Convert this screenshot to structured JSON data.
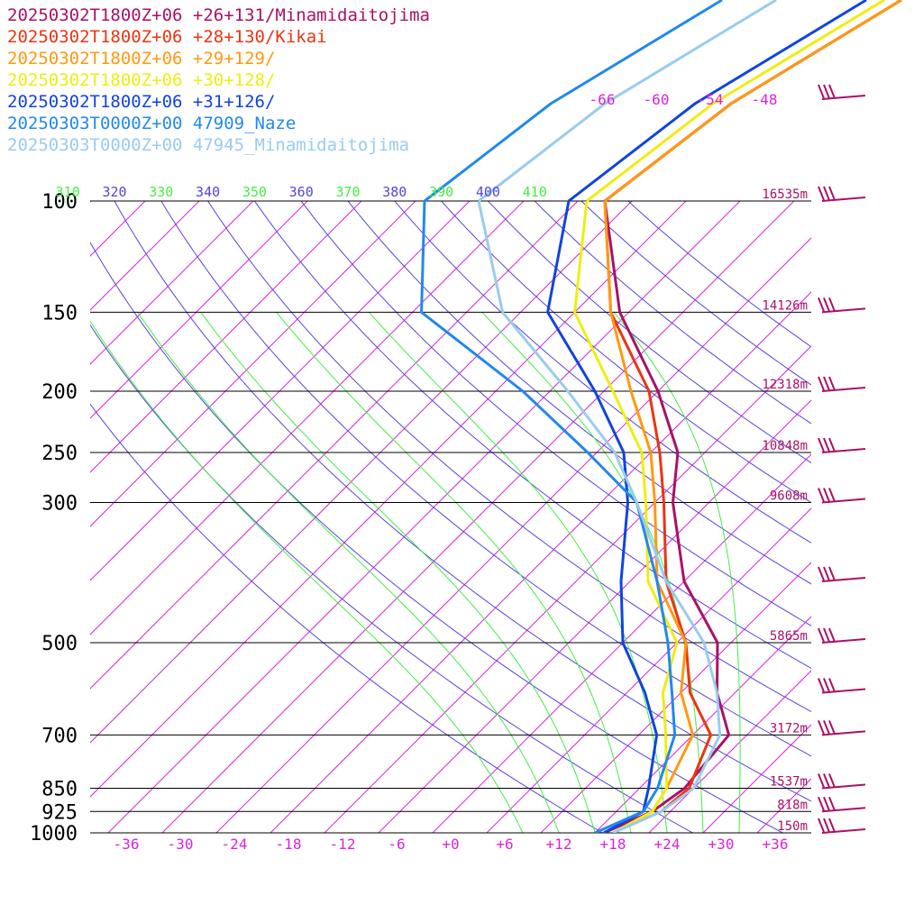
{
  "chart_data": {
    "type": "line",
    "chart_kind": "skew-T log-p sounding",
    "x_axis": {
      "unit": "°C",
      "range": [
        -40,
        40
      ],
      "tick_labels": [
        "-36",
        "-30",
        "-24",
        "-18",
        "-12",
        "-6",
        "+0",
        "+6",
        "+12",
        "+18",
        "+24",
        "+30",
        "+36"
      ]
    },
    "y_axis": {
      "unit": "hPa",
      "scale": "log",
      "range": [
        1000,
        100
      ],
      "tick_labels": [
        {
          "p": 100,
          "label": "100"
        },
        {
          "p": 150,
          "label": "150"
        },
        {
          "p": 200,
          "label": "200"
        },
        {
          "p": 250,
          "label": "250"
        },
        {
          "p": 300,
          "label": "300"
        },
        {
          "p": 500,
          "label": "500"
        },
        {
          "p": 700,
          "label": "700"
        },
        {
          "p": 850,
          "label": "850"
        },
        {
          "p": 925,
          "label": "925"
        },
        {
          "p": 1000,
          "label": "1000"
        }
      ]
    },
    "height_labels": [
      {
        "p": 100,
        "label": "16535m"
      },
      {
        "p": 150,
        "label": "14126m"
      },
      {
        "p": 200,
        "label": "12318m"
      },
      {
        "p": 250,
        "label": "10848m"
      },
      {
        "p": 300,
        "label": "9608m"
      },
      {
        "p": 500,
        "label": "5865m"
      },
      {
        "p": 700,
        "label": "3172m"
      },
      {
        "p": 850,
        "label": "1537m"
      },
      {
        "p": 925,
        "label": "818m"
      },
      {
        "p": 1000,
        "label": "150m"
      }
    ],
    "isotherm_top_labels": [
      "-66",
      "-60",
      "-54",
      "-48"
    ],
    "theta_labels": [
      {
        "value": "310",
        "color": "#44ee44"
      },
      {
        "value": "320",
        "color": "#5544dd"
      },
      {
        "value": "330",
        "color": "#44ee44"
      },
      {
        "value": "340",
        "color": "#5544dd"
      },
      {
        "value": "350",
        "color": "#44ee44"
      },
      {
        "value": "360",
        "color": "#5544dd"
      },
      {
        "value": "370",
        "color": "#44ee44"
      },
      {
        "value": "380",
        "color": "#5544dd"
      },
      {
        "value": "390",
        "color": "#44ee44"
      },
      {
        "value": "400",
        "color": "#5544dd"
      },
      {
        "value": "410",
        "color": "#44ee44"
      }
    ],
    "dry_adiabats_theta_K": [
      290,
      300,
      310,
      320,
      330,
      340,
      350,
      360,
      370,
      380,
      390,
      400,
      410,
      420,
      430
    ],
    "moist_adiabats_theta_w_C": [
      8,
      12,
      16,
      20,
      24,
      28,
      32
    ],
    "colors": {
      "isotherm": "#dd22dd",
      "dry_adiabat": "#5544dd",
      "moist_adiabat": "#44ee44",
      "isobar": "#000000",
      "wind_barb": "#aa1166"
    },
    "series": [
      {
        "name": "20250302T1800Z+06 +26+131/Minamidaitojima",
        "color": "#aa1166",
        "points": [
          [
            1000,
            17
          ],
          [
            925,
            20
          ],
          [
            850,
            21
          ],
          [
            700,
            20
          ],
          [
            600,
            14
          ],
          [
            500,
            8.5
          ],
          [
            400,
            -2
          ],
          [
            300,
            -12
          ],
          [
            250,
            -17
          ],
          [
            200,
            -26
          ],
          [
            150,
            -39
          ],
          [
            100,
            -53
          ]
        ]
      },
      {
        "name": "20250302T1800Z+06 +28+130/Kikai",
        "color": "#ee3311",
        "points": [
          [
            1000,
            18
          ],
          [
            925,
            21
          ],
          [
            850,
            21.5
          ],
          [
            700,
            18
          ],
          [
            600,
            11
          ],
          [
            500,
            5
          ],
          [
            400,
            -4
          ],
          [
            300,
            -13
          ],
          [
            250,
            -19
          ],
          [
            200,
            -27
          ],
          [
            150,
            -40
          ],
          [
            100,
            -53
          ]
        ]
      },
      {
        "name": "20250302T1800Z+06 +29+129/",
        "color": "#ff9911",
        "points": [
          [
            1000,
            18
          ],
          [
            925,
            20
          ],
          [
            850,
            19
          ],
          [
            700,
            16
          ],
          [
            600,
            10
          ],
          [
            500,
            5
          ],
          [
            400,
            -5
          ],
          [
            300,
            -14
          ],
          [
            250,
            -20
          ],
          [
            200,
            -29
          ],
          [
            150,
            -40
          ],
          [
            100,
            -53
          ]
        ]
      },
      {
        "name": "20250302T1800Z+06 +30+128/",
        "color": "#eeee11",
        "points": [
          [
            1000,
            18
          ],
          [
            925,
            20
          ],
          [
            850,
            19
          ],
          [
            700,
            13
          ],
          [
            600,
            8
          ],
          [
            500,
            4
          ],
          [
            400,
            -6
          ],
          [
            300,
            -15
          ],
          [
            250,
            -21
          ],
          [
            200,
            -31
          ],
          [
            150,
            -44
          ],
          [
            100,
            -55
          ]
        ]
      },
      {
        "name": "20250302T1800Z+06 +31+126/",
        "color": "#1144dd",
        "points": [
          [
            1000,
            17
          ],
          [
            925,
            19
          ],
          [
            850,
            17
          ],
          [
            700,
            12
          ],
          [
            600,
            6
          ],
          [
            500,
            -2
          ],
          [
            400,
            -9
          ],
          [
            300,
            -17
          ],
          [
            250,
            -23
          ],
          [
            200,
            -33
          ],
          [
            150,
            -47
          ],
          [
            100,
            -57
          ]
        ]
      },
      {
        "name": "20250303T0000Z+00 47909_Naze",
        "color": "#2288ee",
        "points": [
          [
            1000,
            16
          ],
          [
            925,
            19
          ],
          [
            850,
            18
          ],
          [
            700,
            14
          ],
          [
            600,
            9
          ],
          [
            500,
            3
          ],
          [
            400,
            -5
          ],
          [
            300,
            -16
          ],
          [
            250,
            -27
          ],
          [
            200,
            -41
          ],
          [
            150,
            -61
          ],
          [
            100,
            -73
          ]
        ]
      },
      {
        "name": "20250303T0000Z+00 47945_Minamidaitojima",
        "color": "#99ccee",
        "points": [
          [
            1000,
            18
          ],
          [
            925,
            21
          ],
          [
            850,
            22
          ],
          [
            700,
            19
          ],
          [
            600,
            14
          ],
          [
            500,
            7
          ],
          [
            400,
            -4
          ],
          [
            300,
            -16
          ],
          [
            250,
            -24
          ],
          [
            200,
            -36
          ],
          [
            150,
            -52
          ],
          [
            100,
            -67
          ]
        ]
      }
    ]
  }
}
